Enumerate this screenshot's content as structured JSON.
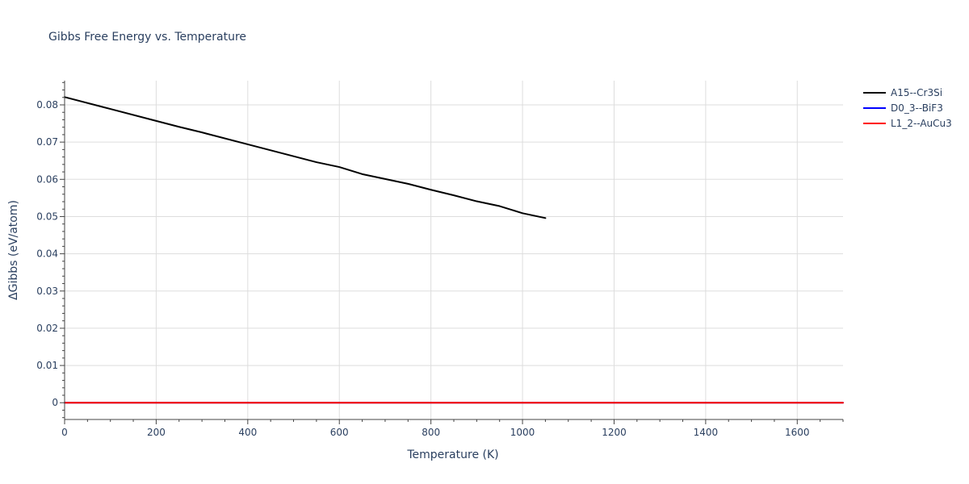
{
  "chart_data": {
    "type": "line",
    "title": "Gibbs Free Energy vs. Temperature",
    "xlabel": "Temperature (K)",
    "ylabel": "ΔGibbs (eV/atom)",
    "xlim": [
      0,
      1700
    ],
    "ylim": [
      -0.0045,
      0.0865
    ],
    "xticks": [
      0,
      200,
      400,
      600,
      800,
      1000,
      1200,
      1400,
      1600
    ],
    "xtick_labels": [
      "0",
      "200",
      "400",
      "600",
      "800",
      "1000",
      "1200",
      "1400",
      "1600"
    ],
    "yticks": [
      0,
      0.01,
      0.02,
      0.03,
      0.04,
      0.05,
      0.06,
      0.07,
      0.08
    ],
    "ytick_labels": [
      "0",
      "0.01",
      "0.02",
      "0.03",
      "0.04",
      "0.05",
      "0.06",
      "0.07",
      "0.08"
    ],
    "grid": true,
    "legend_position": "top-right",
    "series": [
      {
        "name": "A15--Cr3Si",
        "color": "#000000",
        "x": [
          0,
          100,
          200,
          250,
          300,
          400,
          500,
          550,
          600,
          650,
          700,
          750,
          800,
          850,
          900,
          950,
          1000,
          1050
        ],
        "y": [
          0.0821,
          0.0789,
          0.0757,
          0.0741,
          0.0726,
          0.0694,
          0.0662,
          0.0646,
          0.0633,
          0.0614,
          0.0601,
          0.0588,
          0.0572,
          0.0557,
          0.0541,
          0.0528,
          0.0509,
          0.0496
        ]
      },
      {
        "name": "D0_3--BiF3",
        "color": "#0000ff",
        "x": [
          0,
          1700
        ],
        "y": [
          0,
          0
        ]
      },
      {
        "name": "L1_2--AuCu3",
        "color": "#ff0000",
        "x": [
          0,
          1700
        ],
        "y": [
          0,
          0
        ]
      }
    ]
  }
}
